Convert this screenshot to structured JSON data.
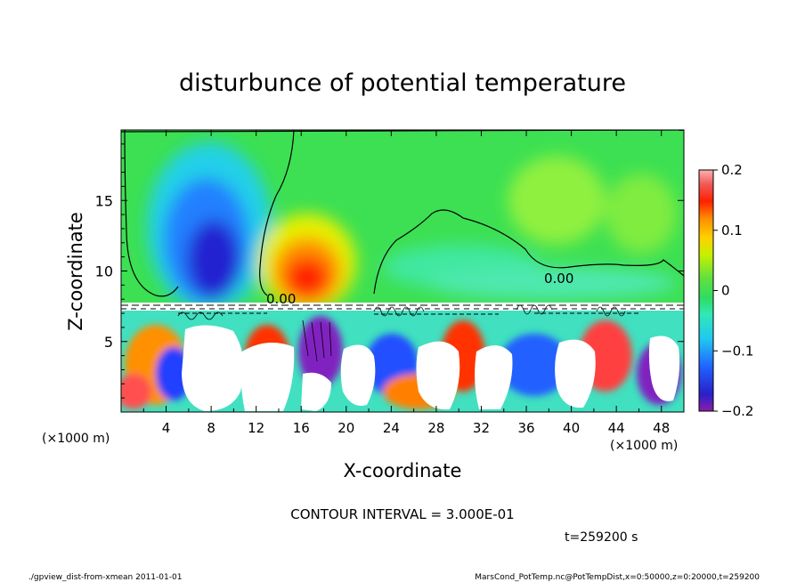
{
  "chart_data": {
    "type": "heatmap",
    "title": "disturbunce of potential temperature",
    "xlabel": "X-coordinate",
    "ylabel": "Z-coordinate",
    "x_unit_left": "(×1000 m)",
    "x_unit_right": "(×1000 m)",
    "xlim": [
      0,
      50
    ],
    "ylim": [
      0,
      20
    ],
    "x_ticks": [
      4,
      8,
      12,
      16,
      20,
      24,
      28,
      32,
      36,
      40,
      44,
      48
    ],
    "y_ticks": [
      5,
      10,
      15
    ],
    "colorbar": {
      "range": [
        -0.2,
        0.2
      ],
      "ticks": [
        0.2,
        0.1,
        0,
        -0.1,
        -0.2
      ],
      "tick_labels": [
        "0.2",
        "0.1",
        "0",
        "−0.1",
        "−0.2"
      ]
    },
    "contour_labels": [
      "0.00",
      "0.00"
    ],
    "contour_interval_text": "CONTOUR INTERVAL = 3.000E-01",
    "time_text": "t=259200 s",
    "footer_left": "./gpview_dist-from-xmean  2011-01-01",
    "footer_right": "MarsCond_PotTemp.nc@PotTempDist,x=0:50000,z=0:20000,t=259200",
    "features": [
      {
        "x": 8,
        "z": 12,
        "value": -0.18
      },
      {
        "x": 16.5,
        "z": 11,
        "value": 0.15
      },
      {
        "x": 38,
        "z": 15,
        "value": 0.03
      },
      {
        "x": 45,
        "z": 13,
        "value": 0.03
      },
      {
        "x": 28,
        "z": 14,
        "value": -0.01
      },
      {
        "x": 5,
        "z": 5,
        "value": 0.1
      }
    ]
  }
}
